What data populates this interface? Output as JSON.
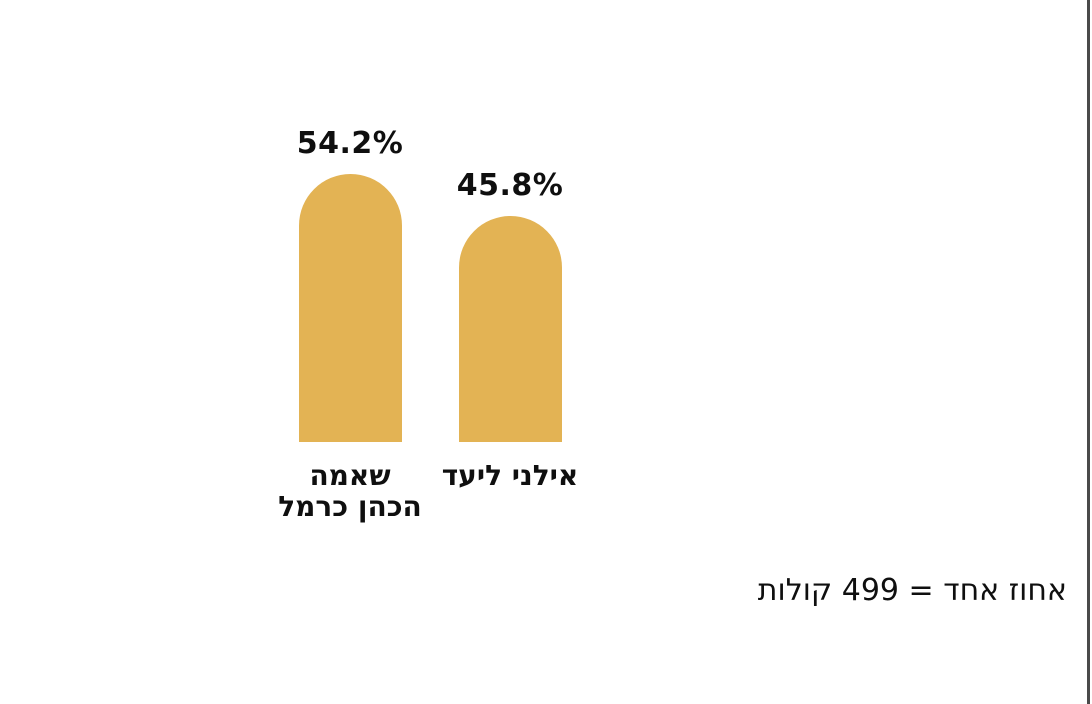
{
  "chart_data": {
    "type": "bar",
    "orientation": "vertical",
    "bar_style": "rounded-top",
    "categories": [
      "שאמה הכהן כרמל",
      "אילני ליעד"
    ],
    "values": [
      54.2,
      45.8
    ],
    "value_labels": [
      "54.2%",
      "45.8%"
    ],
    "annotation": "אחוז אחד = 499 קולות",
    "axes": "none",
    "grid": false,
    "legend": "none",
    "bar_color": "#e3b354"
  },
  "bars": [
    {
      "value": 54.2,
      "value_label": "54.2%",
      "label": "שאמה\nהכהן כרמל"
    },
    {
      "value": 45.8,
      "value_label": "45.8%",
      "label": "אילני ליעד"
    }
  ],
  "note": {
    "text": "אחוז אחד = 499 קולות"
  },
  "colors": {
    "bar": "#e3b354",
    "text": "#0f0f0f",
    "background": "#ffffff",
    "scrollbar": "#4a4a4a"
  }
}
